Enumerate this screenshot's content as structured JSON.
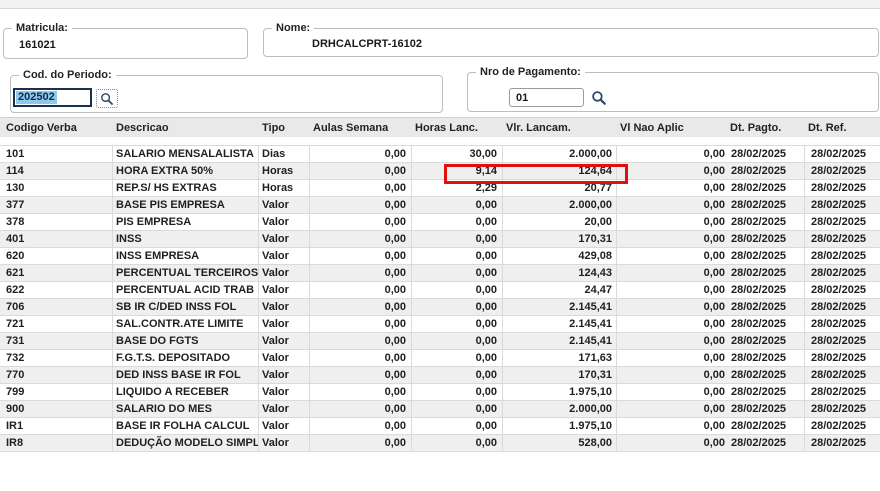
{
  "header_fields": {
    "matricula": {
      "label": "Matricula:",
      "value": "161021"
    },
    "nome": {
      "label": "Nome:",
      "value": "DRHCALCPRT-16102"
    },
    "cod_periodo": {
      "label": "Cod. do Periodo:",
      "value": "202502",
      "selection_color": "#8fc8ee"
    },
    "nro_pagamento": {
      "label": "Nro de Pagamento:",
      "value": "01"
    }
  },
  "icons": {
    "cod_periodo_search": "search-icon",
    "nro_pagamento_search": "search-icon"
  },
  "table": {
    "columns": [
      "Codigo Verba",
      "Descricao",
      "Tipo",
      "Aulas Semana",
      "Horas Lanc.",
      "Vlr. Lancam.",
      "Vl Nao Aplic",
      "Dt. Pagto.",
      "Dt. Ref."
    ],
    "rows": [
      [
        "101",
        "SALARIO MENSALALISTA",
        "Dias",
        "0,00",
        "30,00",
        "2.000,00",
        "0,00",
        "28/02/2025",
        "28/02/2025"
      ],
      [
        "114",
        "HORA EXTRA  50%",
        "Horas",
        "0,00",
        "9,14",
        "124,64",
        "0,00",
        "28/02/2025",
        "28/02/2025"
      ],
      [
        "130",
        "REP.S/ HS EXTRAS",
        "Horas",
        "0,00",
        "2,29",
        "20,77",
        "0,00",
        "28/02/2025",
        "28/02/2025"
      ],
      [
        "377",
        "BASE PIS EMPRESA",
        "Valor",
        "0,00",
        "0,00",
        "2.000,00",
        "0,00",
        "28/02/2025",
        "28/02/2025"
      ],
      [
        "378",
        "PIS EMPRESA",
        "Valor",
        "0,00",
        "0,00",
        "20,00",
        "0,00",
        "28/02/2025",
        "28/02/2025"
      ],
      [
        "401",
        "INSS",
        "Valor",
        "0,00",
        "0,00",
        "170,31",
        "0,00",
        "28/02/2025",
        "28/02/2025"
      ],
      [
        "620",
        "INSS EMPRESA",
        "Valor",
        "0,00",
        "0,00",
        "429,08",
        "0,00",
        "28/02/2025",
        "28/02/2025"
      ],
      [
        "621",
        "PERCENTUAL TERCEIROS",
        "Valor",
        "0,00",
        "0,00",
        "124,43",
        "0,00",
        "28/02/2025",
        "28/02/2025"
      ],
      [
        "622",
        "PERCENTUAL ACID TRAB",
        "Valor",
        "0,00",
        "0,00",
        "24,47",
        "0,00",
        "28/02/2025",
        "28/02/2025"
      ],
      [
        "706",
        "SB IR C/DED INSS FOL",
        "Valor",
        "0,00",
        "0,00",
        "2.145,41",
        "0,00",
        "28/02/2025",
        "28/02/2025"
      ],
      [
        "721",
        "SAL.CONTR.ATE LIMITE",
        "Valor",
        "0,00",
        "0,00",
        "2.145,41",
        "0,00",
        "28/02/2025",
        "28/02/2025"
      ],
      [
        "731",
        "BASE DO FGTS",
        "Valor",
        "0,00",
        "0,00",
        "2.145,41",
        "0,00",
        "28/02/2025",
        "28/02/2025"
      ],
      [
        "732",
        "F.G.T.S.  DEPOSITADO",
        "Valor",
        "0,00",
        "0,00",
        "171,63",
        "0,00",
        "28/02/2025",
        "28/02/2025"
      ],
      [
        "770",
        "DED INSS BASE IR FOL",
        "Valor",
        "0,00",
        "0,00",
        "170,31",
        "0,00",
        "28/02/2025",
        "28/02/2025"
      ],
      [
        "799",
        "LIQUIDO A RECEBER",
        "Valor",
        "0,00",
        "0,00",
        "1.975,10",
        "0,00",
        "28/02/2025",
        "28/02/2025"
      ],
      [
        "900",
        "SALARIO DO MES",
        "Valor",
        "0,00",
        "0,00",
        "2.000,00",
        "0,00",
        "28/02/2025",
        "28/02/2025"
      ],
      [
        "IR1",
        "BASE IR FOLHA CALCUL",
        "Valor",
        "0,00",
        "0,00",
        "1.975,10",
        "0,00",
        "28/02/2025",
        "28/02/2025"
      ],
      [
        "IR8",
        "DEDUÇÃO MODELO SIMPL",
        "Valor",
        "0,00",
        "0,00",
        "528,00",
        "0,00",
        "28/02/2025",
        "28/02/2025"
      ]
    ],
    "highlight": {
      "row_code": "114",
      "columns": [
        "Horas Lanc.",
        "Vlr. Lancam."
      ],
      "values": [
        "9,14",
        "124,64"
      ],
      "border_color": "#e11010"
    }
  }
}
